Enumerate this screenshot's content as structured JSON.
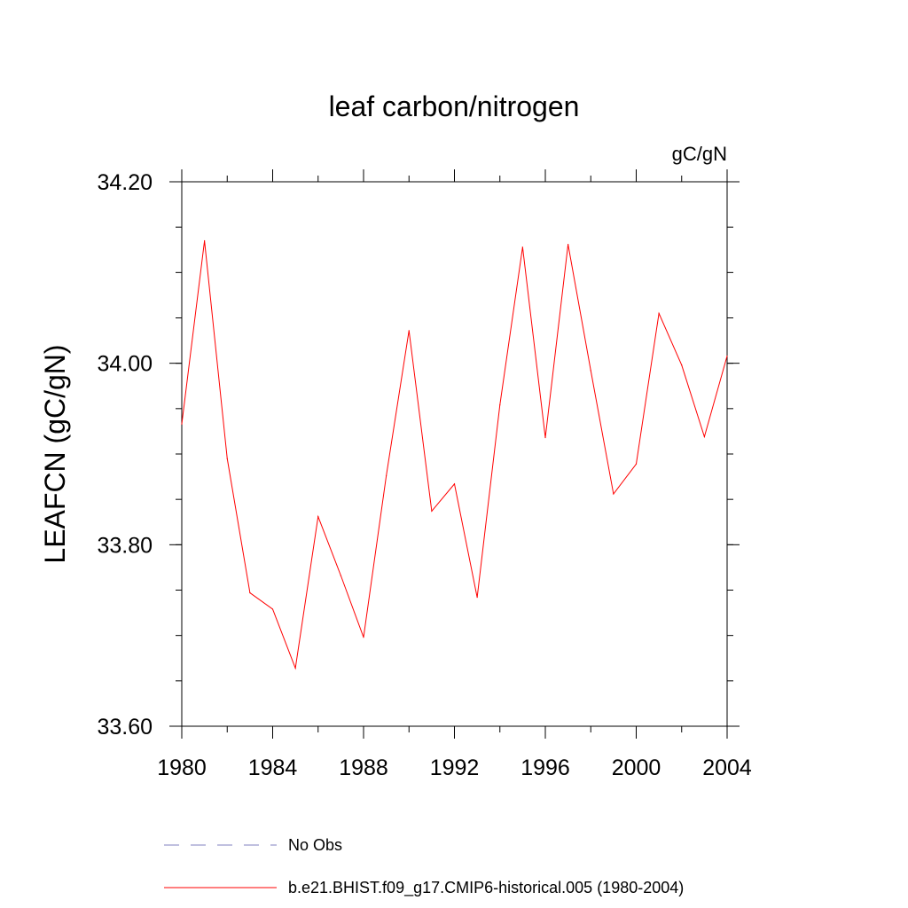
{
  "chart_data": {
    "type": "line",
    "title": "leaf carbon/nitrogen",
    "units": "gC/gN",
    "ylabel": "LEAFCN  (gC/gN)",
    "xlabel": "",
    "xlim": [
      1980,
      2004
    ],
    "ylim": [
      33.6,
      34.2
    ],
    "x_ticks": [
      1980,
      1984,
      1988,
      1992,
      1996,
      2000,
      2004
    ],
    "x_tick_labels": [
      "1980",
      "1984",
      "1988",
      "1992",
      "1996",
      "2000",
      "2004"
    ],
    "y_ticks": [
      33.6,
      33.8,
      34.0,
      34.2
    ],
    "y_tick_labels": [
      "33.60",
      "33.80",
      "34.00",
      "34.20"
    ],
    "x_minor_step": 2,
    "y_minor_step": 0.05,
    "grid": false,
    "series": [
      {
        "name": "b.e21.BHIST.f09_g17.CMIP6-historical.005 (1980-2004)",
        "color": "#ff0000",
        "dash": "solid",
        "x": [
          1980,
          1981,
          1982,
          1983,
          1984,
          1985,
          1986,
          1987,
          1988,
          1989,
          1990,
          1991,
          1992,
          1993,
          1994,
          1995,
          1996,
          1997,
          1998,
          1999,
          2000,
          2001,
          2002,
          2003,
          2004
        ],
        "values": [
          33.933,
          34.135,
          33.895,
          33.747,
          33.729,
          33.664,
          33.831,
          33.766,
          33.698,
          33.876,
          34.036,
          33.837,
          33.867,
          33.742,
          33.954,
          34.128,
          33.918,
          34.131,
          33.992,
          33.856,
          33.889,
          34.055,
          33.998,
          33.919,
          34.008
        ]
      }
    ],
    "legend": [
      {
        "label": "No Obs",
        "color": "#8080c0",
        "dash": "dashed"
      },
      {
        "label": "b.e21.BHIST.f09_g17.CMIP6-historical.005 (1980-2004)",
        "color": "#ff0000",
        "dash": "solid"
      }
    ]
  }
}
